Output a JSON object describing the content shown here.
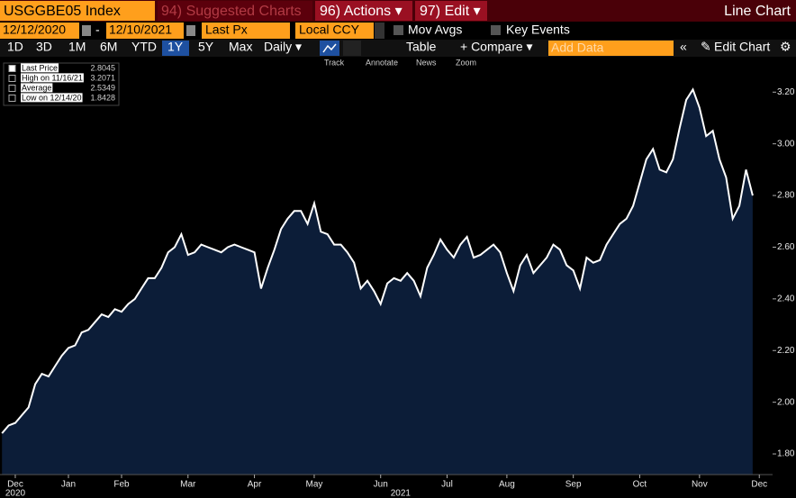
{
  "topbar": {
    "ticker": "USGGBE05 Index",
    "suggested": "94) Suggested Charts",
    "actions": "96) Actions ▾",
    "edit": "97) Edit ▾",
    "chart_type": "Line Chart"
  },
  "controls": {
    "start_date": "12/12/2020",
    "dash": "-",
    "end_date": "12/10/2021",
    "field": "Last Px",
    "currency": "Local CCY",
    "mov_avgs": "Mov Avgs",
    "key_events": "Key Events"
  },
  "periods": [
    "1D",
    "3D",
    "1M",
    "6M",
    "YTD",
    "1Y",
    "5Y",
    "Max"
  ],
  "selected_period": 5,
  "frequency": "Daily ▾",
  "table": "Table",
  "compare": "+ Compare ▾",
  "add_data": "Add Data",
  "edit_chart": "Edit Chart",
  "tools": [
    "Track",
    "Annotate",
    "News",
    "Zoom"
  ],
  "legend": [
    {
      "label": "Last Price",
      "value": 2.8045
    },
    {
      "label": "High on 11/16/21",
      "value": 3.2071
    },
    {
      "label": "Average",
      "value": 2.5349
    },
    {
      "label": "Low on 12/14/20",
      "value": 1.8428
    }
  ],
  "chart_data": {
    "type": "area",
    "color": "#ffffff",
    "fill": "#0c1d38",
    "values": [
      1.88,
      1.91,
      1.92,
      1.95,
      1.98,
      2.07,
      2.11,
      2.1,
      2.14,
      2.18,
      2.21,
      2.22,
      2.27,
      2.28,
      2.31,
      2.34,
      2.33,
      2.36,
      2.35,
      2.38,
      2.4,
      2.44,
      2.48,
      2.48,
      2.52,
      2.58,
      2.6,
      2.65,
      2.57,
      2.58,
      2.61,
      2.6,
      2.59,
      2.58,
      2.6,
      2.61,
      2.6,
      2.59,
      2.58,
      2.44,
      2.52,
      2.59,
      2.67,
      2.71,
      2.74,
      2.74,
      2.69,
      2.77,
      2.66,
      2.65,
      2.61,
      2.61,
      2.58,
      2.54,
      2.44,
      2.47,
      2.43,
      2.38,
      2.46,
      2.48,
      2.47,
      2.5,
      2.47,
      2.41,
      2.52,
      2.57,
      2.63,
      2.59,
      2.56,
      2.61,
      2.64,
      2.56,
      2.57,
      2.59,
      2.61,
      2.58,
      2.5,
      2.43,
      2.53,
      2.57,
      2.5,
      2.53,
      2.56,
      2.61,
      2.59,
      2.53,
      2.51,
      2.44,
      2.56,
      2.54,
      2.55,
      2.61,
      2.65,
      2.69,
      2.71,
      2.76,
      2.85,
      2.94,
      2.98,
      2.9,
      2.89,
      2.94,
      3.06,
      3.17,
      3.21,
      3.14,
      3.03,
      3.05,
      2.94,
      2.87,
      2.71,
      2.76,
      2.9,
      2.8
    ],
    "xlim": [
      -0.3,
      116
    ],
    "xticks": [
      {
        "value": 2,
        "label": "Dec"
      },
      {
        "value": 10,
        "label": "Jan"
      },
      {
        "value": 18,
        "label": "Feb"
      },
      {
        "value": 28,
        "label": "Mar"
      },
      {
        "value": 38,
        "label": "Apr"
      },
      {
        "value": 47,
        "label": "May"
      },
      {
        "value": 57,
        "label": "Jun"
      },
      {
        "value": 67,
        "label": "Jul"
      },
      {
        "value": 76,
        "label": "Aug"
      },
      {
        "value": 86,
        "label": "Sep"
      },
      {
        "value": 96,
        "label": "Oct"
      },
      {
        "value": 105,
        "label": "Nov"
      },
      {
        "value": 114,
        "label": "Dec"
      }
    ],
    "year_labels": [
      {
        "value": 2,
        "label": "2020"
      },
      {
        "value": 60,
        "label": "2021"
      }
    ],
    "ylim": [
      1.72,
      3.33
    ],
    "yticks": [
      {
        "value": 1.8,
        "label": "1.80"
      },
      {
        "value": 2.0,
        "label": "2.00"
      },
      {
        "value": 2.2,
        "label": "2.20"
      },
      {
        "value": 2.4,
        "label": "2.40"
      },
      {
        "value": 2.6,
        "label": "2.60"
      },
      {
        "value": 2.8,
        "label": "2.80"
      },
      {
        "value": 3.0,
        "label": "3.00"
      },
      {
        "value": 3.2,
        "label": "3.20"
      }
    ]
  }
}
